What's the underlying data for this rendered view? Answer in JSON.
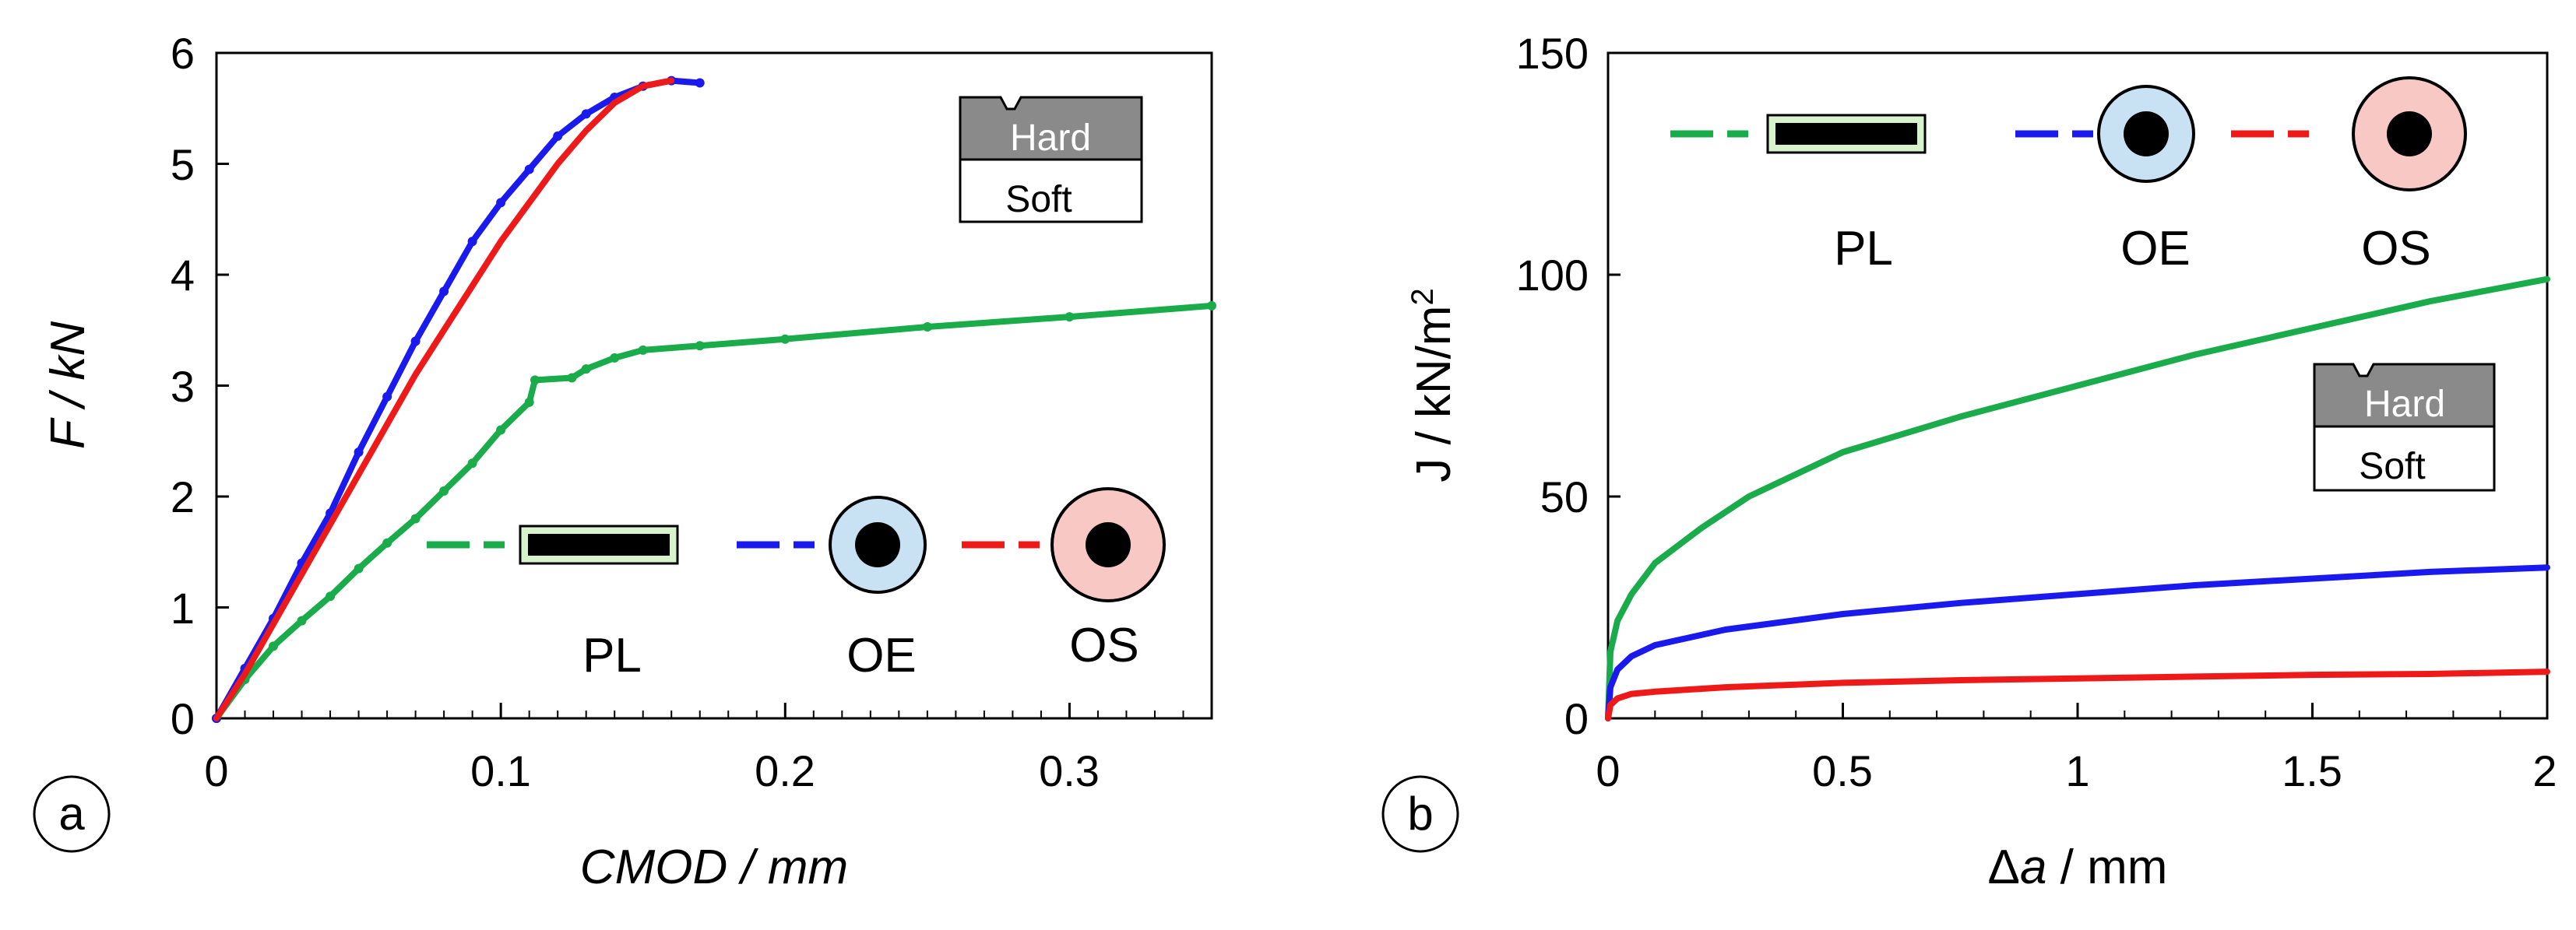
{
  "colors": {
    "PL": "#1aab4a",
    "OE": "#1a1aee",
    "OS": "#ee1a1a",
    "OE_fill": "#c8e2f4",
    "OS_fill": "#f8c8c4",
    "PL_fill": "#d8f2cc",
    "hard_fill": "#8a8a8a"
  },
  "chart_data": [
    {
      "id": "a",
      "type": "line",
      "panel_label": "a",
      "xlabel": "CMOD / mm",
      "ylabel": "F / kN",
      "xlim": [
        0,
        0.35
      ],
      "ylim": [
        0,
        6
      ],
      "xticks": [
        0,
        0.1,
        0.2,
        0.3
      ],
      "xtick_labels": [
        "0",
        "0.1",
        "0.2",
        "0.3"
      ],
      "yticks": [
        0,
        1,
        2,
        3,
        4,
        5,
        6
      ],
      "ytick_labels": [
        "0",
        "1",
        "2",
        "3",
        "4",
        "5",
        "6"
      ],
      "legend_position": "bottom-right",
      "inset_labels": {
        "top": "Hard",
        "bottom": "Soft"
      },
      "series": [
        {
          "name": "PL",
          "color_key": "PL",
          "points": [
            [
              0,
              0
            ],
            [
              0.01,
              0.35
            ],
            [
              0.02,
              0.65
            ],
            [
              0.03,
              0.88
            ],
            [
              0.04,
              1.1
            ],
            [
              0.05,
              1.35
            ],
            [
              0.06,
              1.58
            ],
            [
              0.07,
              1.8
            ],
            [
              0.08,
              2.05
            ],
            [
              0.09,
              2.3
            ],
            [
              0.1,
              2.6
            ],
            [
              0.11,
              2.85
            ],
            [
              0.112,
              3.05
            ],
            [
              0.125,
              3.07
            ],
            [
              0.13,
              3.15
            ],
            [
              0.14,
              3.25
            ],
            [
              0.15,
              3.32
            ],
            [
              0.17,
              3.36
            ],
            [
              0.2,
              3.42
            ],
            [
              0.25,
              3.53
            ],
            [
              0.3,
              3.62
            ],
            [
              0.35,
              3.72
            ]
          ]
        },
        {
          "name": "OE",
          "color_key": "OE",
          "points": [
            [
              0,
              0
            ],
            [
              0.01,
              0.45
            ],
            [
              0.02,
              0.9
            ],
            [
              0.03,
              1.4
            ],
            [
              0.04,
              1.85
            ],
            [
              0.05,
              2.4
            ],
            [
              0.06,
              2.9
            ],
            [
              0.07,
              3.4
            ],
            [
              0.08,
              3.85
            ],
            [
              0.09,
              4.3
            ],
            [
              0.1,
              4.65
            ],
            [
              0.11,
              4.95
            ],
            [
              0.12,
              5.25
            ],
            [
              0.13,
              5.45
            ],
            [
              0.14,
              5.6
            ],
            [
              0.15,
              5.7
            ],
            [
              0.16,
              5.75
            ],
            [
              0.17,
              5.73
            ]
          ]
        },
        {
          "name": "OS",
          "color_key": "OS",
          "points": [
            [
              0,
              0
            ],
            [
              0.01,
              0.4
            ],
            [
              0.02,
              0.85
            ],
            [
              0.03,
              1.3
            ],
            [
              0.04,
              1.75
            ],
            [
              0.05,
              2.2
            ],
            [
              0.06,
              2.65
            ],
            [
              0.07,
              3.1
            ],
            [
              0.08,
              3.5
            ],
            [
              0.09,
              3.9
            ],
            [
              0.1,
              4.3
            ],
            [
              0.11,
              4.65
            ],
            [
              0.12,
              5.0
            ],
            [
              0.13,
              5.3
            ],
            [
              0.14,
              5.55
            ],
            [
              0.15,
              5.7
            ],
            [
              0.16,
              5.75
            ]
          ]
        }
      ],
      "legend": [
        {
          "name": "PL",
          "symbol": "plate"
        },
        {
          "name": "OE",
          "symbol": "ring"
        },
        {
          "name": "OS",
          "symbol": "ring"
        }
      ]
    },
    {
      "id": "b",
      "type": "line",
      "panel_label": "b",
      "xlabel": "Δa / mm",
      "ylabel": "J / kN/m2",
      "xlim": [
        0,
        2
      ],
      "ylim": [
        0,
        150
      ],
      "xticks": [
        0,
        0.5,
        1,
        1.5,
        2
      ],
      "xtick_labels": [
        "0",
        "0.5",
        "1",
        "1.5",
        "2"
      ],
      "yticks": [
        0,
        50,
        100,
        150
      ],
      "ytick_labels": [
        "0",
        "50",
        "100",
        "150"
      ],
      "legend_position": "top",
      "inset_labels": {
        "top": "Hard",
        "bottom": "Soft"
      },
      "series": [
        {
          "name": "PL",
          "color_key": "PL",
          "points": [
            [
              0,
              0
            ],
            [
              0.005,
              15
            ],
            [
              0.02,
              22
            ],
            [
              0.05,
              28
            ],
            [
              0.1,
              35
            ],
            [
              0.2,
              43
            ],
            [
              0.3,
              50
            ],
            [
              0.4,
              55
            ],
            [
              0.5,
              60
            ],
            [
              0.75,
              68
            ],
            [
              1,
              75
            ],
            [
              1.25,
              82
            ],
            [
              1.5,
              88
            ],
            [
              1.75,
              94
            ],
            [
              2,
              99
            ]
          ]
        },
        {
          "name": "OE",
          "color_key": "OE",
          "points": [
            [
              0,
              0
            ],
            [
              0.005,
              7
            ],
            [
              0.02,
              11
            ],
            [
              0.05,
              14
            ],
            [
              0.1,
              16.5
            ],
            [
              0.25,
              20
            ],
            [
              0.5,
              23.5
            ],
            [
              0.75,
              26
            ],
            [
              1,
              28
            ],
            [
              1.25,
              30
            ],
            [
              1.5,
              31.5
            ],
            [
              1.75,
              33
            ],
            [
              2,
              34
            ]
          ]
        },
        {
          "name": "OS",
          "color_key": "OS",
          "points": [
            [
              0,
              0
            ],
            [
              0.005,
              3
            ],
            [
              0.02,
              4.5
            ],
            [
              0.05,
              5.5
            ],
            [
              0.1,
              6
            ],
            [
              0.25,
              7
            ],
            [
              0.5,
              8
            ],
            [
              0.75,
              8.6
            ],
            [
              1,
              9
            ],
            [
              1.25,
              9.4
            ],
            [
              1.5,
              9.8
            ],
            [
              1.75,
              10
            ],
            [
              2,
              10.5
            ]
          ]
        }
      ],
      "legend": [
        {
          "name": "PL",
          "symbol": "plate"
        },
        {
          "name": "OE",
          "symbol": "ring"
        },
        {
          "name": "OS",
          "symbol": "ring"
        }
      ]
    }
  ]
}
